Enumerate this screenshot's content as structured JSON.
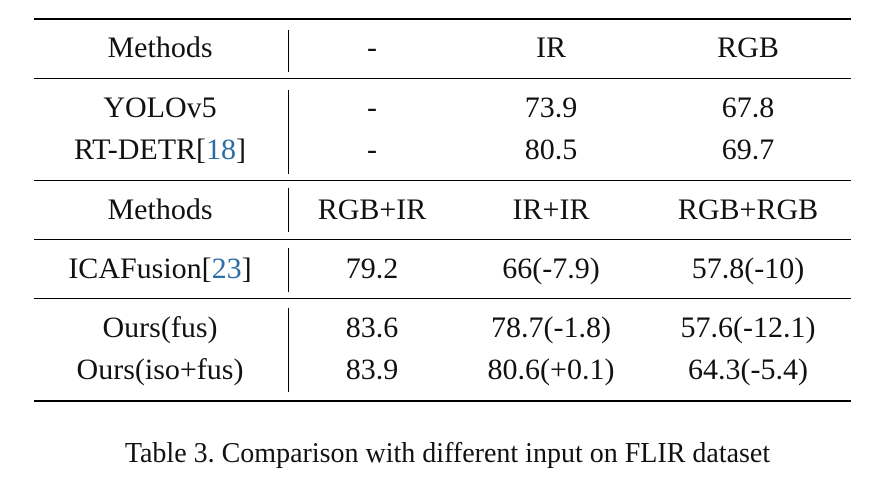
{
  "table": {
    "header1": [
      "Methods",
      "-",
      "IR",
      "RGB"
    ],
    "group1": [
      {
        "method": "YOLOv5",
        "ref": "",
        "cells": [
          "-",
          "73.9",
          "67.8"
        ]
      },
      {
        "method": "RT-DETR[",
        "ref": "18",
        "suffix": "]",
        "cells": [
          "-",
          "80.5",
          "69.7"
        ]
      }
    ],
    "header2": [
      "Methods",
      "RGB+IR",
      "IR+IR",
      "RGB+RGB"
    ],
    "group2": [
      {
        "method": "ICAFusion[",
        "ref": "23",
        "suffix": "]",
        "cells": [
          "79.2",
          "66(-7.9)",
          "57.8(-10)"
        ]
      }
    ],
    "group3": [
      {
        "method": "Ours(fus)",
        "cells": [
          "83.6",
          "78.7(-1.8)",
          "57.6(-12.1)"
        ]
      },
      {
        "method": "Ours(iso+fus)",
        "cells": [
          "83.9",
          "80.6(+0.1)",
          "64.3(-5.4)"
        ]
      }
    ]
  },
  "caption": "Table 3. Comparison with different input on FLIR dataset"
}
